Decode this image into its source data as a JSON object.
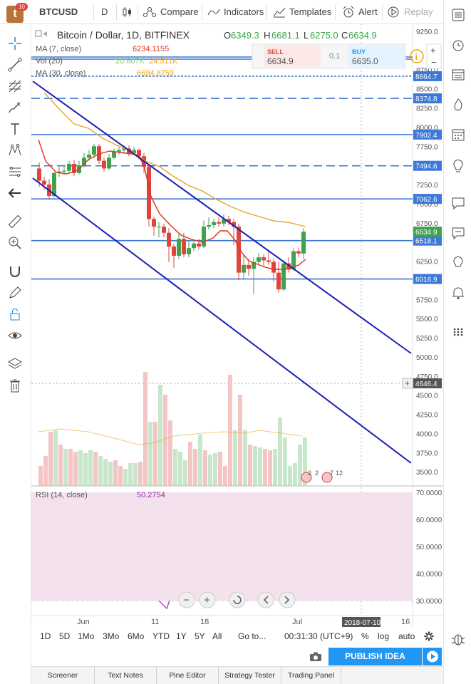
{
  "topbar": {
    "badge": "10",
    "symbol": "BTCUSD",
    "interval": "D",
    "compare": "Compare",
    "indicators": "Indicators",
    "templates": "Templates",
    "alert": "Alert",
    "replay": "Replay"
  },
  "legend": {
    "title": "Bitcoin / Dollar, 1D, BITFINEX",
    "open_label": "O",
    "open": "6349.3",
    "high_label": "H",
    "high": "6681.1",
    "low_label": "L",
    "low": "6275.0",
    "close_label": "C",
    "close": "6634.9",
    "ma7_label": "MA (7, close)",
    "ma7_value": "6234.1155",
    "vol_label": "Vol (20)",
    "vol_value1": "20.607K",
    "vol_value2": "24.511K",
    "ma30_label": "MA (30, close)",
    "ma30_value": "6694.8759"
  },
  "trade": {
    "sell_label": "SELL",
    "sell_price": "6634.9",
    "spread": "0.1",
    "buy_label": "BUY",
    "buy_price": "6635.0"
  },
  "rsi": {
    "label": "RSI (14, close)",
    "value": "50.2754"
  },
  "price_axis": [
    "9250.0",
    "8750.0",
    "8500.0",
    "8250.0",
    "8000.0",
    "7750.0",
    "7500.0",
    "7250.0",
    "7000.0",
    "6750.0",
    "6500.0",
    "6250.0",
    "6000.0",
    "5750.0",
    "5500.0",
    "5250.0",
    "5000.0",
    "4750.0",
    "4500.0",
    "4250.0",
    "4000.0",
    "3750.0",
    "3500.0"
  ],
  "price_tags": {
    "t1": "8664.7",
    "t2": "8374.8",
    "t3": "7902.4",
    "t4": "7494.6",
    "t5": "7062.6",
    "t6": "6634.9",
    "t7": "6518.1",
    "t8": "6016.9",
    "t9": "4646.4"
  },
  "rsi_axis": [
    "70.0000",
    "60.0000",
    "50.0000",
    "40.0000",
    "30.0000"
  ],
  "time_axis": {
    "t1": "Jun",
    "t2": "11",
    "t3": "18",
    "t4": "Jul",
    "cursor": "2018-07-10",
    "t5": "16"
  },
  "event_labels": {
    "e1": "2",
    "e2": "2",
    "e3": "7",
    "e4": "12"
  },
  "bottombar": {
    "ranges": [
      "1D",
      "5D",
      "1Mo",
      "3Mo",
      "6Mo",
      "YTD",
      "1Y",
      "5Y",
      "All"
    ],
    "goto": "Go to...",
    "clock": "00:31:30 (UTC+9)",
    "pct": "%",
    "log": "log",
    "auto": "auto"
  },
  "publish": "PUBLISH IDEA",
  "tabs": [
    "Screener",
    "Text Notes",
    "Pine Editor",
    "Strategy Tester",
    "Trading Panel"
  ],
  "colors": {
    "up": "#3fa34d",
    "down": "#e0443b",
    "ma7": "#e0321d",
    "ma30": "#e8a627",
    "hline": "#3c78d8",
    "channel": "#1a1fb3",
    "rsi_line": "#9c27b0",
    "rsi_band": "#f3e2ee",
    "accent": "#2196f3"
  }
}
